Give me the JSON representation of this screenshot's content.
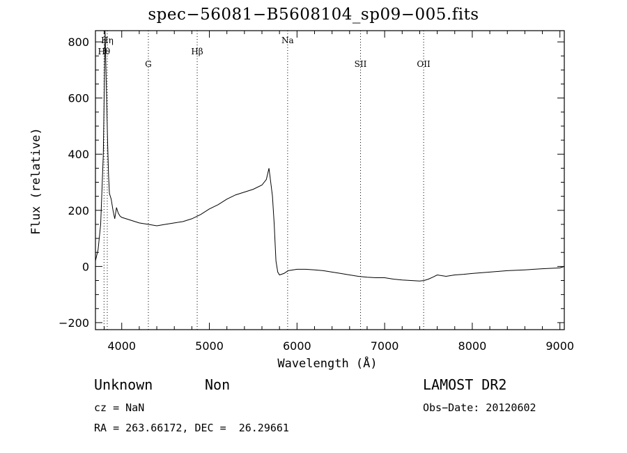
{
  "chart_data": {
    "type": "line",
    "title": "spec−56081−B5608104_sp09−005.fits",
    "xlabel": "Wavelength (Å)",
    "ylabel": "Flux (relative)",
    "xlim": [
      3700,
      9050
    ],
    "ylim": [
      -225,
      840
    ],
    "xticks": [
      4000,
      5000,
      6000,
      7000,
      8000,
      9000
    ],
    "yticks": [
      -200,
      0,
      200,
      400,
      600,
      800
    ],
    "grid": false,
    "lines": [
      {
        "label": "Hη",
        "x": 3835,
        "row": 0
      },
      {
        "label": "Hθ",
        "x": 3798,
        "row": 1
      },
      {
        "label": "G",
        "x": 4304,
        "row": 2
      },
      {
        "label": "Hβ",
        "x": 4861,
        "row": 1
      },
      {
        "label": "Na",
        "x": 5893,
        "row": 0
      },
      {
        "label": "SII",
        "x": 6725,
        "row": 2
      },
      {
        "label": "OII",
        "x": 7445,
        "row": 2
      }
    ],
    "series": [
      {
        "x": [
          3700,
          3730,
          3760,
          3790,
          3800,
          3810,
          3820,
          3830,
          3840,
          3850,
          3860,
          3880,
          3900,
          3920,
          3940,
          3960,
          3980,
          4000,
          4050,
          4100,
          4150,
          4200,
          4300,
          4400,
          4500,
          4600,
          4700,
          4800,
          4900,
          5000,
          5100,
          5200,
          5300,
          5400,
          5500,
          5600,
          5650,
          5680,
          5700,
          5720,
          5740,
          5760,
          5780,
          5800,
          5850,
          5900,
          6000,
          6100,
          6200,
          6300,
          6400,
          6500,
          6600,
          6700,
          6800,
          6900,
          7000,
          7100,
          7200,
          7300,
          7400,
          7450,
          7500,
          7550,
          7600,
          7700,
          7800,
          7900,
          8000,
          8200,
          8400,
          8600,
          8800,
          9000,
          9050
        ],
        "y": [
          20,
          60,
          150,
          400,
          620,
          840,
          700,
          560,
          430,
          320,
          260,
          240,
          200,
          170,
          210,
          190,
          180,
          175,
          170,
          165,
          160,
          155,
          150,
          145,
          150,
          155,
          160,
          170,
          185,
          205,
          220,
          240,
          255,
          265,
          275,
          290,
          310,
          350,
          300,
          250,
          150,
          20,
          -20,
          -30,
          -25,
          -15,
          -10,
          -10,
          -12,
          -15,
          -20,
          -25,
          -30,
          -35,
          -38,
          -40,
          -40,
          -45,
          -48,
          -50,
          -52,
          -50,
          -45,
          -38,
          -30,
          -35,
          -30,
          -28,
          -25,
          -20,
          -15,
          -12,
          -8,
          -5,
          0
        ]
      }
    ]
  },
  "footer": {
    "object_class": "Unknown",
    "object_subclass": "Non",
    "cz": "cz = NaN",
    "radec": "RA = 263.66172, DEC =  26.29661",
    "survey": "LAMOST DR2",
    "obs_date": "Obs−Date: 20120602"
  }
}
